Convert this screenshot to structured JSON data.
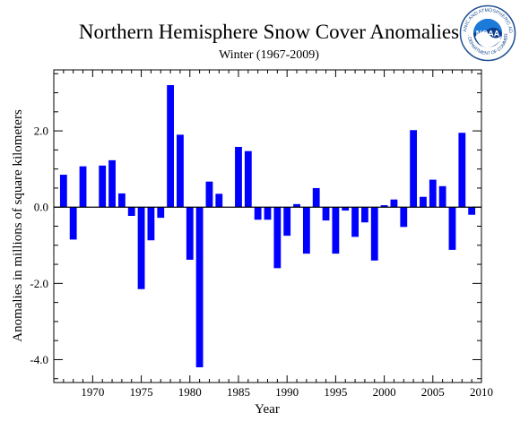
{
  "logo": {
    "text": "NOAA",
    "ring_text_top": "NATIONAL OCEANIC AND ATMOSPHERIC ADMINISTRATION",
    "ring_text_bottom": "U.S. DEPARTMENT OF COMMERCE"
  },
  "colors": {
    "bar": "#0000ff",
    "zero_line": "#000000",
    "axis": "#000000"
  },
  "chart_data": {
    "type": "bar",
    "title": "Northern Hemisphere Snow Cover Anomalies",
    "subtitle": "Winter (1967-2009)",
    "xlabel": "Year",
    "ylabel": "Anomalies in millions of square kilometers",
    "xlim": [
      1966,
      2010
    ],
    "ylim": [
      -4.6,
      3.6
    ],
    "x_ticks": [
      1970,
      1975,
      1980,
      1985,
      1990,
      1995,
      2000,
      2005,
      2010
    ],
    "y_ticks": [
      -4.0,
      -2.0,
      0.0,
      2.0
    ],
    "y_tick_labels": [
      "-4.0",
      "-2.0",
      "0.0",
      "2.0"
    ],
    "grid": false,
    "x": [
      1967,
      1968,
      1969,
      1970,
      1971,
      1972,
      1973,
      1974,
      1975,
      1976,
      1977,
      1978,
      1979,
      1980,
      1981,
      1982,
      1983,
      1984,
      1985,
      1986,
      1987,
      1988,
      1989,
      1990,
      1991,
      1992,
      1993,
      1994,
      1995,
      1996,
      1997,
      1998,
      1999,
      2000,
      2001,
      2002,
      2003,
      2004,
      2005,
      2006,
      2007,
      2008,
      2009
    ],
    "values": [
      0.85,
      -0.85,
      1.07,
      null,
      1.09,
      1.23,
      0.36,
      -0.23,
      -2.15,
      -0.87,
      -0.28,
      3.2,
      1.9,
      -1.38,
      -4.2,
      0.67,
      0.35,
      null,
      1.58,
      1.47,
      -0.33,
      -0.33,
      -1.6,
      -0.75,
      0.08,
      -1.22,
      0.5,
      -0.35,
      -1.22,
      -0.09,
      -0.78,
      -0.4,
      -1.4,
      0.05,
      0.2,
      -0.52,
      2.02,
      0.27,
      0.72,
      0.55,
      -1.12,
      1.95,
      -0.2
    ]
  }
}
